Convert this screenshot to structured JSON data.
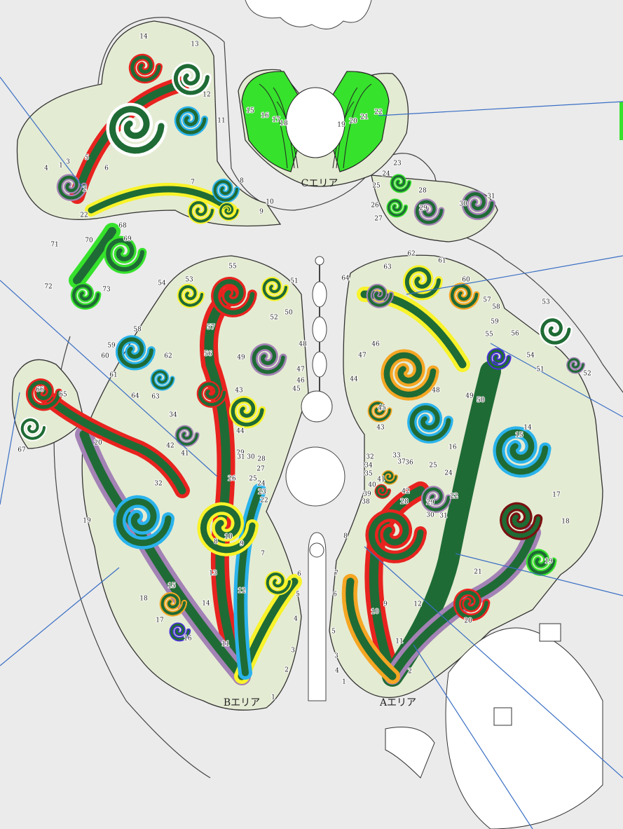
{
  "map": {
    "c_area": {
      "label": "Cエリア",
      "plots": [
        "15",
        "16",
        "17",
        "18",
        "19",
        "20",
        "21",
        "22",
        "23",
        "24",
        "25",
        "26",
        "27",
        "28",
        "29",
        "30",
        "31"
      ]
    },
    "northwest_group": {
      "plots": [
        "1",
        "2",
        "3",
        "4",
        "5",
        "6",
        "7",
        "8",
        "9",
        "10",
        "11",
        "12",
        "13",
        "14",
        "22",
        "68",
        "69",
        "70",
        "71",
        "72",
        "73"
      ]
    },
    "b_area": {
      "label": "Bエリア",
      "plots": [
        "1",
        "2",
        "3",
        "4",
        "5",
        "6",
        "7",
        "8",
        "9",
        "10",
        "11",
        "12",
        "13",
        "14",
        "15",
        "16",
        "17",
        "18",
        "19",
        "20",
        "32",
        "34",
        "42",
        "41",
        "43",
        "44",
        "45",
        "46",
        "47",
        "48",
        "49",
        "50",
        "51",
        "52",
        "53",
        "54",
        "55",
        "56",
        "57",
        "58",
        "59",
        "60",
        "61",
        "62",
        "63",
        "64",
        "65",
        "66",
        "67",
        "22",
        "23",
        "24",
        "25",
        "26",
        "27",
        "28",
        "29",
        "30",
        "31"
      ]
    },
    "a_area": {
      "label": "Aエリア",
      "plots": [
        "1",
        "2",
        "3",
        "4",
        "5",
        "6",
        "7",
        "8",
        "9",
        "10",
        "11",
        "12",
        "14",
        "15",
        "16",
        "17",
        "18",
        "19",
        "20",
        "21",
        "22",
        "24",
        "25",
        "28",
        "29",
        "30",
        "31",
        "32",
        "33",
        "34",
        "35",
        "36",
        "37",
        "38",
        "39",
        "40",
        "41",
        "42",
        "43",
        "44",
        "45",
        "46",
        "47",
        "48",
        "49",
        "50",
        "51",
        "52",
        "53",
        "54",
        "55",
        "56",
        "57",
        "58",
        "59",
        "60",
        "61",
        "62",
        "63",
        "64"
      ]
    }
  }
}
